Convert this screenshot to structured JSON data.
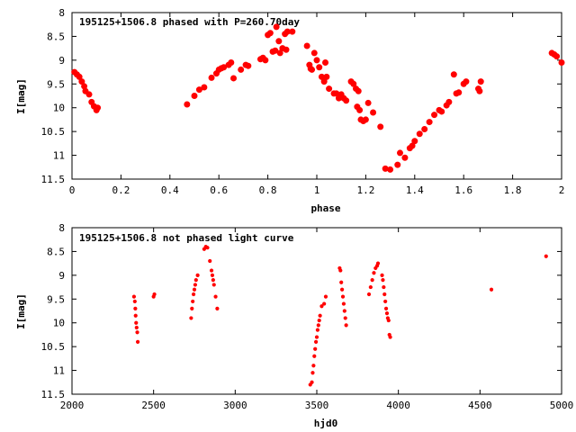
{
  "chart_data": [
    {
      "type": "scatter",
      "title": "195125+1506.8 phased with P=260.70day",
      "xlabel": "phase",
      "ylabel": "I[mag]",
      "xlim": [
        0,
        2
      ],
      "ylim": [
        8,
        11.5
      ],
      "y_inverted": true,
      "grid": false,
      "marker_color": "#ff0000",
      "x_ticks": [
        "0",
        "0.2",
        "0.4",
        "0.6",
        "0.8",
        "1",
        "1.2",
        "1.4",
        "1.6",
        "1.8",
        "2"
      ],
      "y_ticks": [
        "8",
        "8.5",
        "9",
        "9.5",
        "10",
        "10.5",
        "11",
        "11.5"
      ],
      "series": [
        {
          "points": [
            [
              0.01,
              9.25
            ],
            [
              0.02,
              9.3
            ],
            [
              0.03,
              9.35
            ],
            [
              0.04,
              9.45
            ],
            [
              0.05,
              9.55
            ],
            [
              0.055,
              9.65
            ],
            [
              0.07,
              9.72
            ],
            [
              0.08,
              9.88
            ],
            [
              0.09,
              9.97
            ],
            [
              0.1,
              10.05
            ],
            [
              0.105,
              10.0
            ],
            [
              0.47,
              9.93
            ],
            [
              0.5,
              9.75
            ],
            [
              0.52,
              9.62
            ],
            [
              0.54,
              9.57
            ],
            [
              0.57,
              9.37
            ],
            [
              0.59,
              9.28
            ],
            [
              0.6,
              9.2
            ],
            [
              0.61,
              9.17
            ],
            [
              0.62,
              9.15
            ],
            [
              0.64,
              9.1
            ],
            [
              0.65,
              9.05
            ],
            [
              0.66,
              9.38
            ],
            [
              0.69,
              9.2
            ],
            [
              0.71,
              9.1
            ],
            [
              0.72,
              9.12
            ],
            [
              0.77,
              8.98
            ],
            [
              0.78,
              8.95
            ],
            [
              0.79,
              9.0
            ],
            [
              0.8,
              8.47
            ],
            [
              0.81,
              8.43
            ],
            [
              0.82,
              8.82
            ],
            [
              0.83,
              8.8
            ],
            [
              0.835,
              8.3
            ],
            [
              0.845,
              8.6
            ],
            [
              0.85,
              8.85
            ],
            [
              0.86,
              8.75
            ],
            [
              0.87,
              8.45
            ],
            [
              0.875,
              8.78
            ],
            [
              0.88,
              8.4
            ],
            [
              0.9,
              8.4
            ],
            [
              0.96,
              8.7
            ],
            [
              0.97,
              9.1
            ],
            [
              0.975,
              9.18
            ],
            [
              0.98,
              9.2
            ],
            [
              0.99,
              8.85
            ],
            [
              1.0,
              9.0
            ],
            [
              1.01,
              9.15
            ],
            [
              1.02,
              9.35
            ],
            [
              1.03,
              9.45
            ],
            [
              1.035,
              9.05
            ],
            [
              1.04,
              9.35
            ],
            [
              1.05,
              9.6
            ],
            [
              1.07,
              9.7
            ],
            [
              1.08,
              9.7
            ],
            [
              1.09,
              9.8
            ],
            [
              1.1,
              9.72
            ],
            [
              1.11,
              9.8
            ],
            [
              1.12,
              9.85
            ],
            [
              1.14,
              9.45
            ],
            [
              1.15,
              9.5
            ],
            [
              1.16,
              9.6
            ],
            [
              1.165,
              9.98
            ],
            [
              1.17,
              9.65
            ],
            [
              1.175,
              10.05
            ],
            [
              1.18,
              10.25
            ],
            [
              1.19,
              10.28
            ],
            [
              1.2,
              10.25
            ],
            [
              1.21,
              9.9
            ],
            [
              1.23,
              10.1
            ],
            [
              1.26,
              10.4
            ],
            [
              1.28,
              11.28
            ],
            [
              1.3,
              11.3
            ],
            [
              1.33,
              11.2
            ],
            [
              1.34,
              10.95
            ],
            [
              1.36,
              11.05
            ],
            [
              1.38,
              10.85
            ],
            [
              1.39,
              10.8
            ],
            [
              1.4,
              10.7
            ],
            [
              1.42,
              10.55
            ],
            [
              1.44,
              10.45
            ],
            [
              1.46,
              10.3
            ],
            [
              1.48,
              10.15
            ],
            [
              1.5,
              10.05
            ],
            [
              1.51,
              10.08
            ],
            [
              1.53,
              9.95
            ],
            [
              1.54,
              9.88
            ],
            [
              1.56,
              9.3
            ],
            [
              1.57,
              9.7
            ],
            [
              1.58,
              9.68
            ],
            [
              1.6,
              9.5
            ],
            [
              1.61,
              9.45
            ],
            [
              1.66,
              9.6
            ],
            [
              1.665,
              9.65
            ],
            [
              1.67,
              9.45
            ],
            [
              1.96,
              8.85
            ],
            [
              1.97,
              8.88
            ],
            [
              1.98,
              8.92
            ],
            [
              2.0,
              9.05
            ]
          ]
        }
      ]
    },
    {
      "type": "scatter",
      "title": "195125+1506.8 not phased light curve",
      "xlabel": "hjd0",
      "ylabel": "I[mag]",
      "xlim": [
        2000,
        5000
      ],
      "ylim": [
        8,
        11.5
      ],
      "y_inverted": true,
      "grid": false,
      "marker_color": "#ff0000",
      "x_ticks": [
        "2000",
        "2500",
        "3000",
        "3500",
        "4000",
        "4500",
        "5000"
      ],
      "y_ticks": [
        "8",
        "8.5",
        "9",
        "9.5",
        "10",
        "10.5",
        "11",
        "11.5"
      ],
      "series": [
        {
          "points": [
            [
              2380,
              9.45
            ],
            [
              2385,
              9.55
            ],
            [
              2388,
              9.7
            ],
            [
              2390,
              9.85
            ],
            [
              2393,
              10.0
            ],
            [
              2396,
              10.1
            ],
            [
              2400,
              10.2
            ],
            [
              2403,
              10.4
            ],
            [
              2500,
              9.45
            ],
            [
              2505,
              9.4
            ],
            [
              2730,
              9.9
            ],
            [
              2735,
              9.7
            ],
            [
              2740,
              9.55
            ],
            [
              2745,
              9.4
            ],
            [
              2750,
              9.3
            ],
            [
              2755,
              9.2
            ],
            [
              2760,
              9.1
            ],
            [
              2770,
              9.0
            ],
            [
              2810,
              8.45
            ],
            [
              2820,
              8.4
            ],
            [
              2830,
              8.42
            ],
            [
              2845,
              8.7
            ],
            [
              2855,
              8.9
            ],
            [
              2860,
              9.0
            ],
            [
              2865,
              9.1
            ],
            [
              2870,
              9.2
            ],
            [
              2880,
              9.45
            ],
            [
              2890,
              9.7
            ],
            [
              3460,
              11.3
            ],
            [
              3470,
              11.25
            ],
            [
              3475,
              11.05
            ],
            [
              3480,
              10.9
            ],
            [
              3485,
              10.7
            ],
            [
              3490,
              10.55
            ],
            [
              3495,
              10.4
            ],
            [
              3500,
              10.3
            ],
            [
              3505,
              10.15
            ],
            [
              3510,
              10.05
            ],
            [
              3515,
              9.95
            ],
            [
              3520,
              9.85
            ],
            [
              3530,
              9.65
            ],
            [
              3545,
              9.6
            ],
            [
              3555,
              9.45
            ],
            [
              3640,
              8.85
            ],
            [
              3645,
              8.9
            ],
            [
              3650,
              9.15
            ],
            [
              3655,
              9.3
            ],
            [
              3660,
              9.45
            ],
            [
              3665,
              9.6
            ],
            [
              3670,
              9.75
            ],
            [
              3675,
              9.9
            ],
            [
              3680,
              10.05
            ],
            [
              3820,
              9.4
            ],
            [
              3830,
              9.25
            ],
            [
              3840,
              9.1
            ],
            [
              3850,
              8.95
            ],
            [
              3860,
              8.85
            ],
            [
              3870,
              8.8
            ],
            [
              3875,
              8.75
            ],
            [
              3900,
              9.0
            ],
            [
              3905,
              9.1
            ],
            [
              3910,
              9.25
            ],
            [
              3915,
              9.4
            ],
            [
              3920,
              9.55
            ],
            [
              3925,
              9.7
            ],
            [
              3930,
              9.8
            ],
            [
              3935,
              9.9
            ],
            [
              3940,
              9.95
            ],
            [
              3945,
              10.25
            ],
            [
              3950,
              10.3
            ],
            [
              4570,
              9.3
            ],
            [
              4905,
              8.6
            ]
          ]
        }
      ]
    }
  ]
}
